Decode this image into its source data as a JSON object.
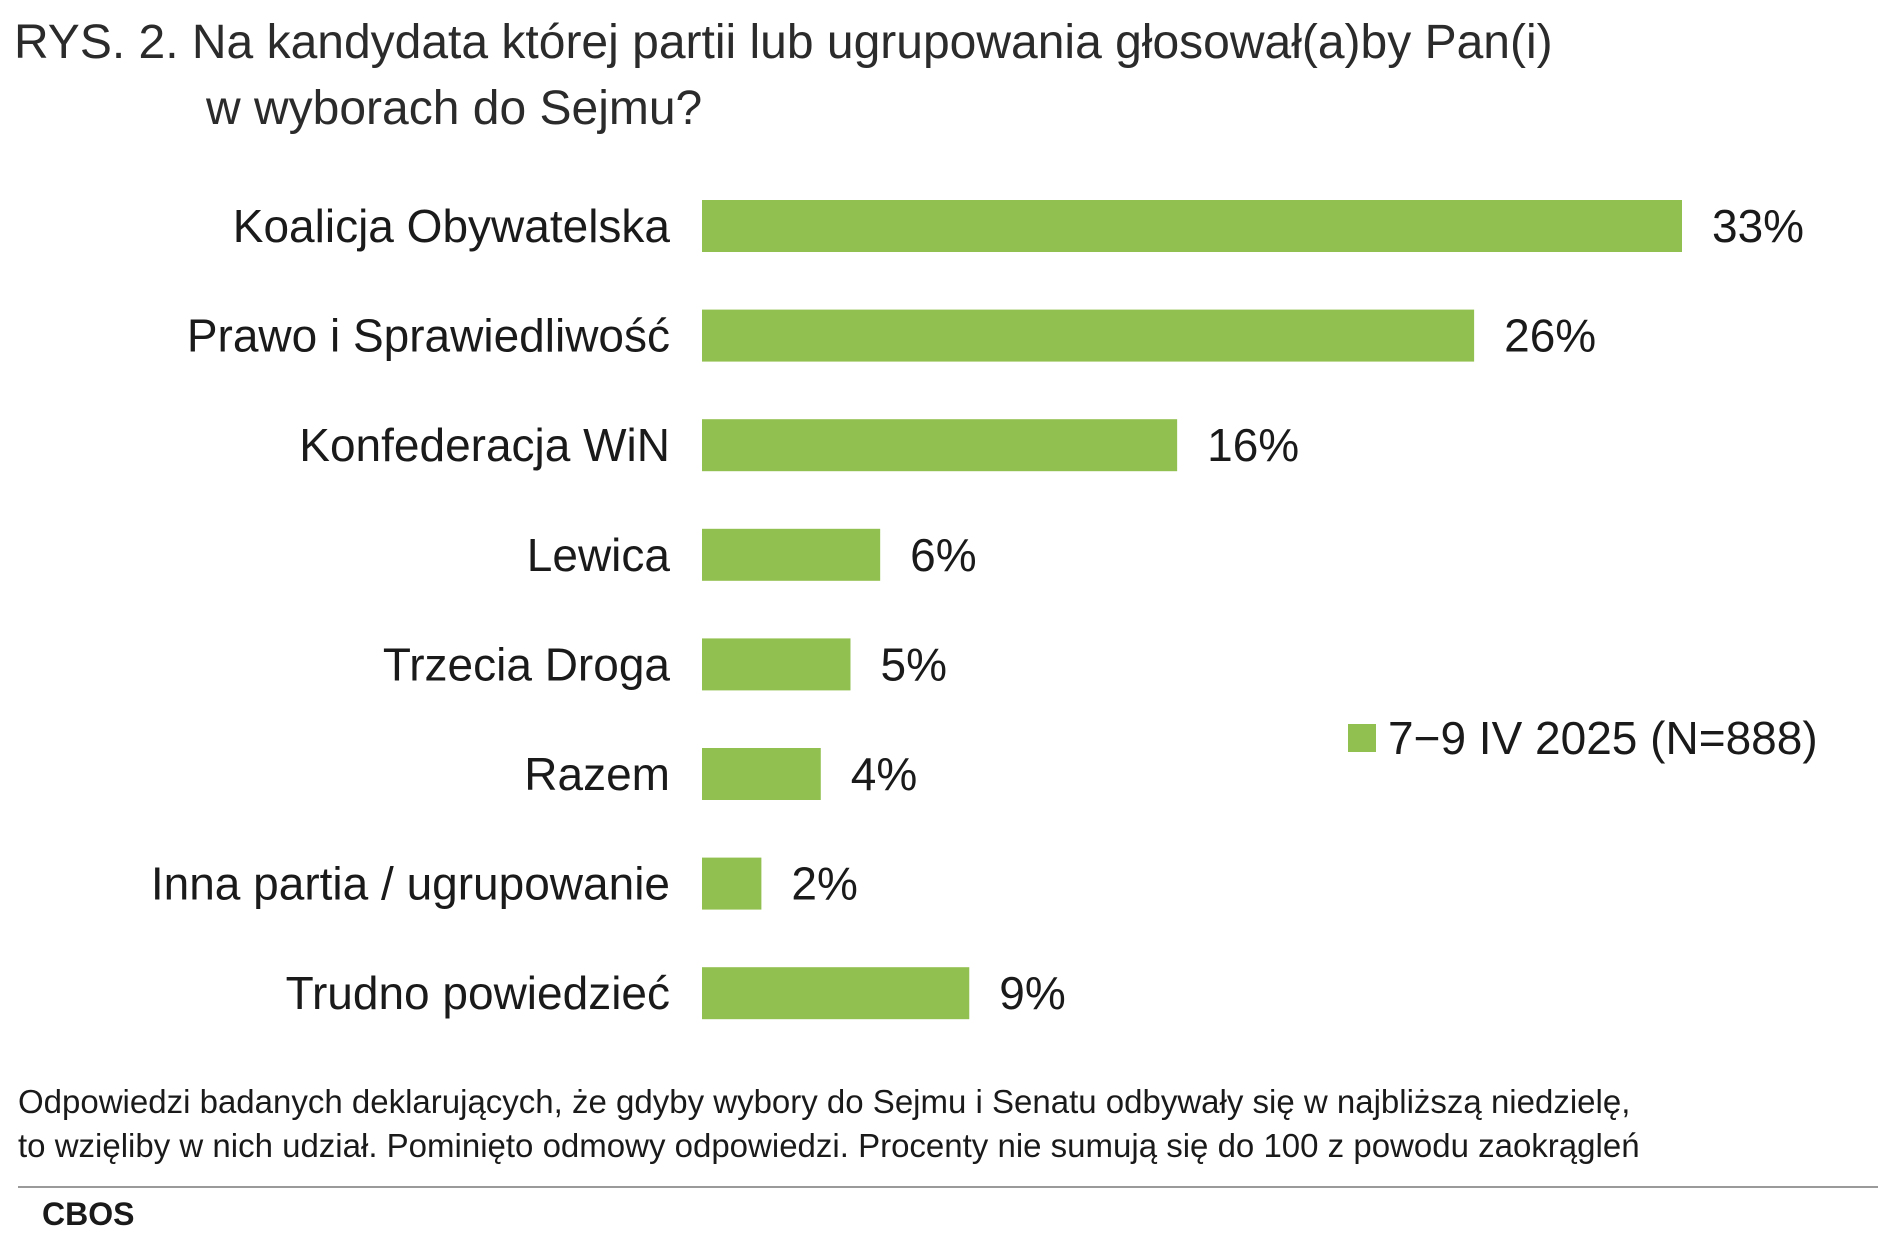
{
  "title": {
    "prefix": "RYS. 2.",
    "line1": "Na kandydata której partii lub ugrupowania głosował(a)by Pan(i)",
    "line2": "w wyborach do Sejmu?"
  },
  "chart_data": {
    "type": "bar",
    "orientation": "horizontal",
    "categories": [
      "Koalicja Obywatelska",
      "Prawo i Sprawiedliwość",
      "Konfederacja WiN",
      "Lewica",
      "Trzecia Droga",
      "Razem",
      "Inna partia / ugrupowanie",
      "Trudno powiedzieć"
    ],
    "series": [
      {
        "name": "7−9 IV 2025 (N=888)",
        "values": [
          33,
          26,
          16,
          6,
          5,
          4,
          2,
          9
        ],
        "color": "#92c050"
      }
    ],
    "value_suffix": "%",
    "xlim": [
      0,
      33
    ],
    "grid": false,
    "axes_visible": false,
    "legend_position": "right"
  },
  "footnote": {
    "line1": "Odpowiedzi badanych deklarujących, że gdyby wybory do Sejmu i Senatu odbywały się w najbliższą niedzielę,",
    "line2": "to wzięliby w nich udział. Pominięto odmowy odpowiedzi. Procenty nie sumują się do 100 z powodu zaokrągleń"
  },
  "source": "CBOS"
}
